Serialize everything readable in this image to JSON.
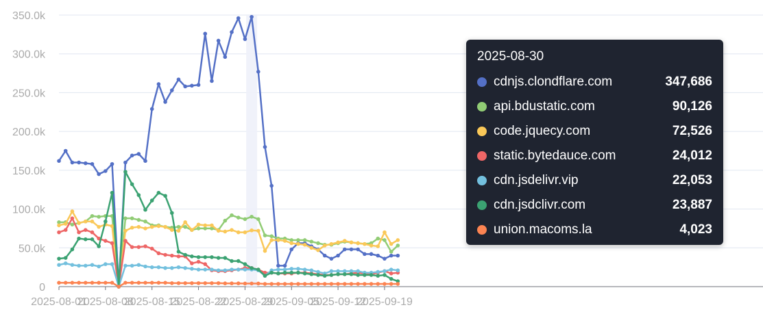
{
  "chart_data": {
    "type": "line",
    "title": "",
    "xlabel": "",
    "ylabel": "",
    "ylim": [
      0,
      350000
    ],
    "grid": true,
    "x": [
      "2025-08-01",
      "2025-08-02",
      "2025-08-03",
      "2025-08-04",
      "2025-08-05",
      "2025-08-06",
      "2025-08-07",
      "2025-08-08",
      "2025-08-09",
      "2025-08-10",
      "2025-08-11",
      "2025-08-12",
      "2025-08-13",
      "2025-08-14",
      "2025-08-15",
      "2025-08-16",
      "2025-08-17",
      "2025-08-18",
      "2025-08-19",
      "2025-08-20",
      "2025-08-21",
      "2025-08-22",
      "2025-08-23",
      "2025-08-24",
      "2025-08-25",
      "2025-08-26",
      "2025-08-27",
      "2025-08-28",
      "2025-08-29",
      "2025-08-30",
      "2025-08-31",
      "2025-09-01",
      "2025-09-02",
      "2025-09-03",
      "2025-09-04",
      "2025-09-05",
      "2025-09-06",
      "2025-09-07",
      "2025-09-08",
      "2025-09-09",
      "2025-09-10",
      "2025-09-11",
      "2025-09-12",
      "2025-09-13",
      "2025-09-14",
      "2025-09-15",
      "2025-09-16",
      "2025-09-17",
      "2025-09-18",
      "2025-09-19",
      "2025-09-20",
      "2025-09-21"
    ],
    "x_tick_labels": [
      "2025-08-01",
      "2025-08-08",
      "2025-08-15",
      "2025-08-22",
      "2025-08-29",
      "2025-09-05",
      "2025-09-12",
      "2025-09-19"
    ],
    "y_tick_labels": [
      "0",
      "50.0k",
      "100.0k",
      "150.0k",
      "200.0k",
      "250.0k",
      "300.0k",
      "350.0k"
    ],
    "y_ticks": [
      0,
      50000,
      100000,
      150000,
      200000,
      250000,
      300000,
      350000
    ],
    "series": [
      {
        "name": "cdnjs.clondflare.com",
        "color": "#5470c6",
        "values": [
          162000,
          175000,
          160000,
          160000,
          159000,
          158000,
          145000,
          149000,
          158000,
          0,
          160000,
          169000,
          171000,
          162000,
          229000,
          261000,
          238000,
          253000,
          267000,
          258000,
          259000,
          260000,
          326000,
          265000,
          317000,
          296000,
          328000,
          346000,
          319000,
          347686,
          277000,
          180000,
          130000,
          27000,
          27000,
          48000,
          56000,
          56000,
          52000,
          48000,
          40000,
          36000,
          40000,
          48000,
          48000,
          48000,
          42000,
          42000,
          40000,
          36000,
          40000,
          40000
        ]
      },
      {
        "name": "api.bdustatic.com",
        "color": "#91cc75",
        "values": [
          83000,
          83000,
          80000,
          82000,
          84000,
          91000,
          90000,
          91000,
          91000,
          0,
          88000,
          88000,
          86000,
          84000,
          79000,
          79000,
          77000,
          76000,
          77000,
          77000,
          73000,
          75000,
          75000,
          75000,
          73000,
          85000,
          92000,
          89000,
          87000,
          90126,
          87000,
          66000,
          65000,
          62000,
          62000,
          60000,
          60000,
          60000,
          58000,
          56000,
          54000,
          54000,
          56000,
          58000,
          57000,
          56000,
          55000,
          56000,
          62000,
          60000,
          45000,
          53000
        ]
      },
      {
        "name": "code.jquecy.com",
        "color": "#fac858",
        "values": [
          79000,
          81000,
          97000,
          82000,
          84000,
          84000,
          77000,
          80000,
          78000,
          0,
          72000,
          76000,
          77000,
          75000,
          77000,
          78000,
          77000,
          73000,
          72000,
          83000,
          73000,
          80000,
          79000,
          79000,
          72000,
          71000,
          73000,
          70000,
          70000,
          72526,
          72000,
          46000,
          60000,
          60000,
          59000,
          56000,
          55000,
          54000,
          50000,
          47000,
          53000,
          55000,
          57000,
          59000,
          57000,
          56000,
          55000,
          53000,
          52000,
          70000,
          55000,
          60000
        ]
      },
      {
        "name": "static.bytedauce.com",
        "color": "#ee6666",
        "values": [
          70000,
          73000,
          88000,
          70000,
          73000,
          70000,
          62000,
          59000,
          56000,
          0,
          59000,
          51000,
          51000,
          52000,
          49000,
          43000,
          41000,
          40000,
          39000,
          39000,
          30000,
          32000,
          29000,
          21000,
          20000,
          20000,
          21000,
          22000,
          24000,
          24012,
          22000,
          18000,
          18000,
          17000,
          17000,
          17000,
          18000,
          18000,
          17000,
          16000,
          15000,
          15000,
          16000,
          16000,
          17000,
          18000,
          17000,
          16000,
          18000,
          20000,
          17000,
          18000
        ]
      },
      {
        "name": "cdn.jsdelivr.vip",
        "color": "#73c0de",
        "values": [
          28000,
          30000,
          28000,
          27000,
          27000,
          28000,
          26000,
          29000,
          29000,
          0,
          27000,
          27000,
          28000,
          26000,
          25000,
          25000,
          24000,
          24000,
          25000,
          24000,
          23000,
          22000,
          22000,
          22000,
          21000,
          21000,
          22000,
          22000,
          22000,
          22053,
          21000,
          14000,
          21000,
          22000,
          22000,
          23000,
          23000,
          22000,
          21000,
          19000,
          17000,
          20000,
          20000,
          20000,
          20000,
          20000,
          18000,
          18000,
          19000,
          20000,
          22000,
          21000
        ]
      },
      {
        "name": "cdn.jsdclivr.com",
        "color": "#3ba272",
        "values": [
          36000,
          37000,
          48000,
          62000,
          61000,
          61000,
          52000,
          84000,
          121000,
          0,
          148000,
          132000,
          118000,
          99000,
          111000,
          121000,
          117000,
          95000,
          45000,
          41000,
          39000,
          38000,
          38000,
          38000,
          37000,
          37000,
          33000,
          33000,
          29000,
          23887,
          22000,
          14000,
          18000,
          17000,
          18000,
          18000,
          18000,
          17000,
          16000,
          15000,
          14000,
          15000,
          16000,
          16000,
          16000,
          15000,
          15000,
          15000,
          14000,
          15000,
          10000,
          7000
        ]
      },
      {
        "name": "union.macoms.la",
        "color": "#fc8452",
        "values": [
          5000,
          5000,
          5000,
          5000,
          5000,
          5000,
          5000,
          5000,
          5000,
          0,
          5000,
          5000,
          5000,
          5000,
          5000,
          5000,
          5000,
          4500,
          4500,
          4500,
          4500,
          4500,
          4500,
          4500,
          4500,
          4200,
          4200,
          4200,
          4000,
          4023,
          4000,
          3500,
          3500,
          3500,
          3500,
          3500,
          3500,
          3500,
          3500,
          3500,
          3500,
          3500,
          3500,
          3500,
          3500,
          3500,
          3500,
          3500,
          3500,
          3500,
          3500,
          3500
        ]
      }
    ],
    "hover_index": 29
  },
  "tooltip": {
    "date": "2025-08-30",
    "rows": [
      {
        "name": "cdnjs.clondflare.com",
        "value": "347,686",
        "color": "#5470c6"
      },
      {
        "name": "api.bdustatic.com",
        "value": "90,126",
        "color": "#91cc75"
      },
      {
        "name": "code.jquecy.com",
        "value": "72,526",
        "color": "#fac858"
      },
      {
        "name": "static.bytedauce.com",
        "value": "24,012",
        "color": "#ee6666"
      },
      {
        "name": "cdn.jsdelivr.vip",
        "value": "22,053",
        "color": "#73c0de"
      },
      {
        "name": "cdn.jsdclivr.com",
        "value": "23,887",
        "color": "#3ba272"
      },
      {
        "name": "union.macoms.la",
        "value": "4,023",
        "color": "#fc8452"
      }
    ]
  }
}
